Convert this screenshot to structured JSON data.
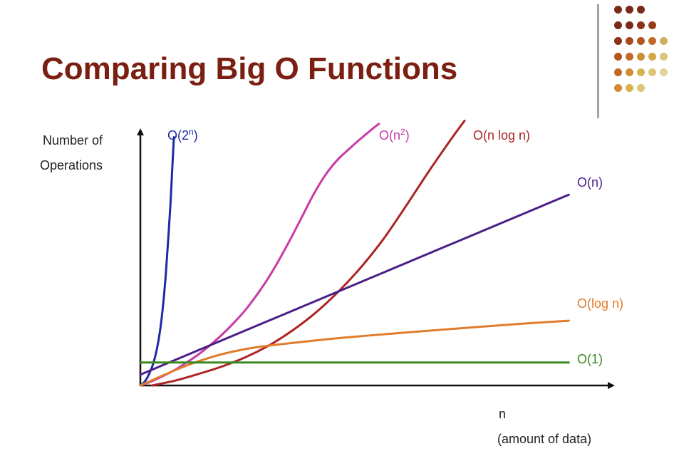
{
  "slide": {
    "title": "Comparing Big O Functions"
  },
  "decoration": {
    "dot_colors": [
      [
        "#7a2a18",
        "#7a2a18",
        "#7a2a18",
        "",
        ""
      ],
      [
        "#7a2a18",
        "#7a2a18",
        "#8a3319",
        "#9a3b1a",
        ""
      ],
      [
        "#8a3319",
        "#a64a1c",
        "#b2561f",
        "#c06a27",
        "#d0b060"
      ],
      [
        "#b2561f",
        "#c06a27",
        "#cf8c34",
        "#d3a647",
        "#dcc57a"
      ],
      [
        "#c06a27",
        "#cf8c34",
        "#d8b24e",
        "#dcc57a",
        "#e0d49a"
      ],
      [
        "#cf8c34",
        "#d8b24e",
        "#dcc57a",
        "",
        ""
      ]
    ]
  },
  "chart_data": {
    "type": "line",
    "ylabel": [
      "Number of",
      "Operations"
    ],
    "xlabel": [
      "n",
      "(amount of data)"
    ],
    "series": [
      {
        "name": "O(2",
        "name_sup": "n",
        "name_tail": ")",
        "color": "#1e2aa8",
        "x": [
          0,
          0.2,
          0.4,
          0.6,
          0.8,
          1.0,
          1.2,
          1.4,
          1.6,
          1.8,
          2.0,
          2.2,
          2.4,
          2.6,
          2.8,
          2.9
        ],
        "y": [
          0,
          0.3,
          0.7,
          1.3,
          2.1,
          3.0,
          4.2,
          5.8,
          7.8,
          10.5,
          14.0,
          18.5,
          24.0,
          30.0,
          37.5,
          41.0
        ]
      },
      {
        "name": "O(n",
        "name_sup": "2",
        "name_tail": ")",
        "color": "#c93aa6",
        "x": [
          0,
          1,
          2,
          3,
          4,
          5,
          6,
          7,
          8,
          9,
          10,
          11,
          12,
          13,
          14,
          15,
          16,
          17,
          18,
          19,
          20,
          20.6
        ],
        "y": [
          0,
          0.7,
          1.6,
          2.6,
          3.8,
          5.1,
          6.6,
          8.3,
          10.2,
          12.3,
          14.8,
          17.6,
          20.8,
          24.3,
          28.0,
          31.7,
          34.8,
          37.2,
          39.0,
          40.7,
          42.3,
          43.2
        ]
      },
      {
        "name": "O(n log n)",
        "name_sup": "",
        "name_tail": "",
        "color": "#ad2424",
        "x": [
          1,
          3,
          5,
          7,
          9,
          11,
          13,
          15,
          17,
          19,
          21,
          23,
          25,
          27,
          28
        ],
        "y": [
          0,
          0.8,
          1.9,
          3.1,
          4.6,
          6.5,
          8.9,
          11.8,
          15.3,
          19.4,
          24.2,
          29.8,
          35.6,
          41.1,
          43.7
        ]
      },
      {
        "name": "O(n)",
        "name_sup": "",
        "name_tail": "",
        "color": "#4a2088",
        "x": [
          0,
          37
        ],
        "y": [
          1.8,
          31.5
        ]
      },
      {
        "name": "O(log n)",
        "name_sup": "",
        "name_tail": "",
        "color": "#e07c2c",
        "x": [
          0,
          2,
          4,
          6,
          8,
          10,
          13,
          17,
          22,
          28,
          33,
          37
        ],
        "y": [
          0,
          1.7,
          3.3,
          4.6,
          5.6,
          6.3,
          7.0,
          7.8,
          8.6,
          9.5,
          10.2,
          10.7
        ]
      },
      {
        "name": "O(1)",
        "name_sup": "",
        "name_tail": "",
        "color": "#3a8a22",
        "x": [
          0,
          37
        ],
        "y": [
          3.8,
          3.8
        ]
      }
    ],
    "xlim": [
      0,
      40
    ],
    "ylim": [
      0,
      46
    ],
    "grid": false,
    "legend": "inline labels at curve ends"
  }
}
